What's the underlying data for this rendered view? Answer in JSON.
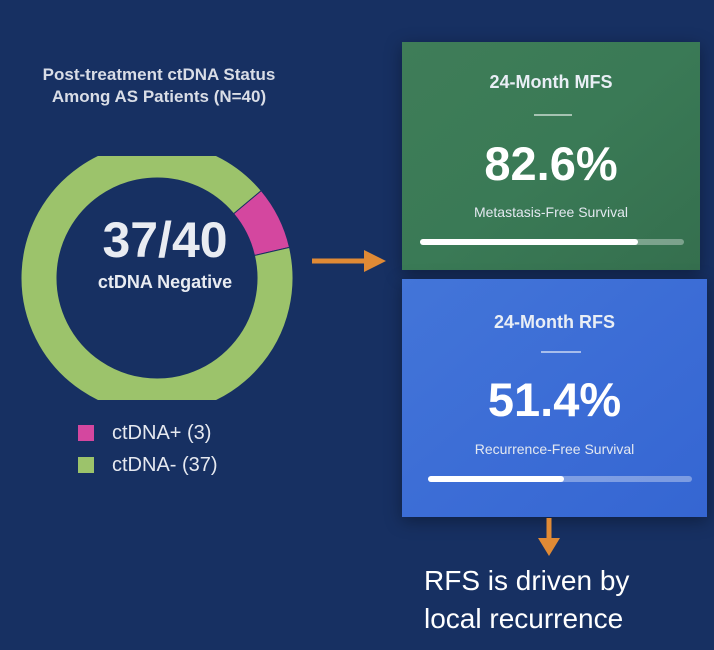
{
  "chart_data": {
    "type": "pie",
    "title": "Post-treatment ctDNA Status Among AS Patients (N=40)",
    "title_lines": [
      "Post-treatment ctDNA Status",
      "Among AS Patients (N=40)"
    ],
    "center_value": "37/40",
    "center_label": "ctDNA Negative",
    "series": [
      {
        "name": "ctDNA+",
        "label": "ctDNA+ (3)",
        "value": 3,
        "color": "#d4479f"
      },
      {
        "name": "ctDNA-",
        "label": "ctDNA- (37)",
        "value": 37,
        "color": "#9cc36b"
      }
    ]
  },
  "cards": {
    "mfs": {
      "heading": "24-Month MFS",
      "value": "82.6%",
      "description": "Metastasis-Free Survival",
      "progress": 0.826
    },
    "rfs": {
      "heading": "24-Month RFS",
      "value": "51.4%",
      "description": "Recurrence-Free Survival",
      "progress": 0.514
    }
  },
  "note": {
    "line1": "RFS is driven by",
    "line2": "local recurrence"
  },
  "colors": {
    "background": "#173062",
    "mfs_card": "#3a7a56",
    "rfs_card": "#3c6dd6",
    "arrow": "#e08a35",
    "ctdna_positive": "#d4479f",
    "ctdna_negative": "#9cc36b"
  },
  "icons": {
    "connector_right": "arrow-right-icon",
    "connector_down": "arrow-down-icon"
  }
}
